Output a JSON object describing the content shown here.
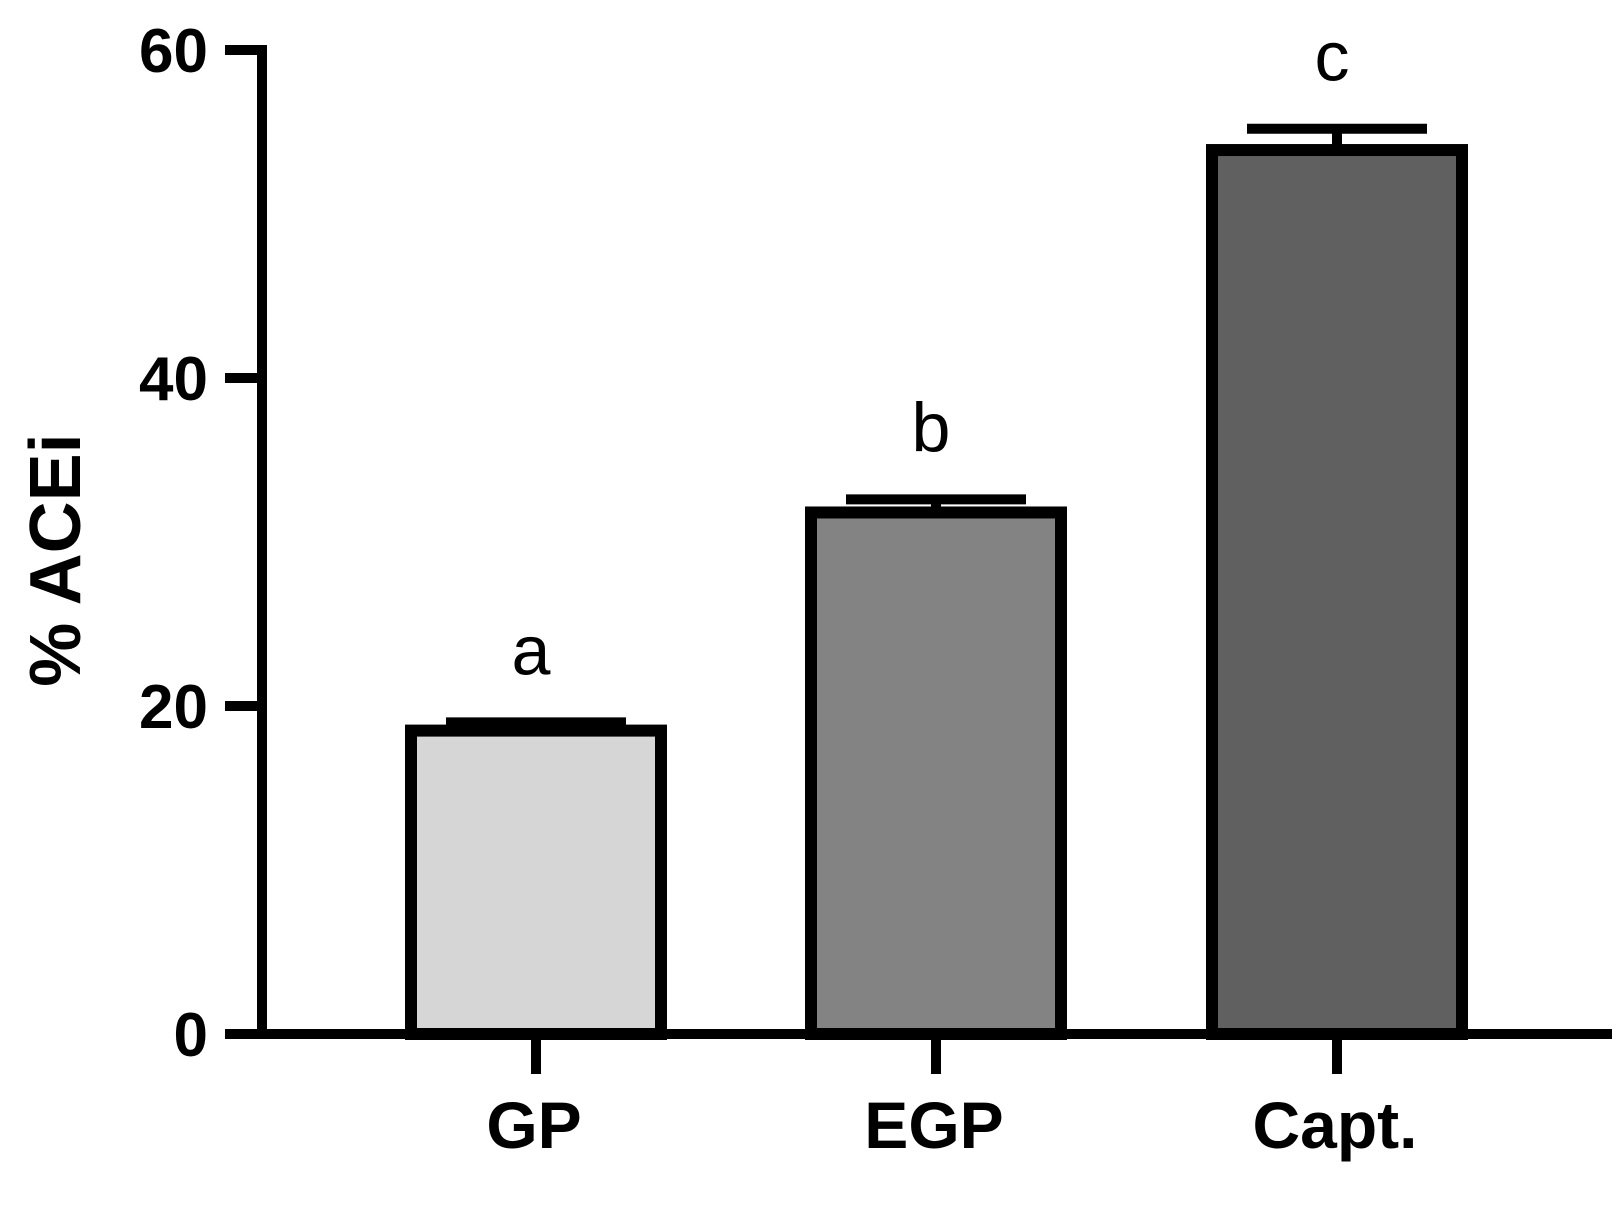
{
  "chart_data": {
    "type": "bar",
    "categories": [
      "GP",
      "EGP",
      "Capt."
    ],
    "values": [
      18.5,
      31.8,
      53.9
    ],
    "errors": [
      0.5,
      0.8,
      1.3
    ],
    "significance_labels": [
      "a",
      "b",
      "c"
    ],
    "bar_colors": [
      "#d6d6d6",
      "#838383",
      "#606060"
    ],
    "title": "",
    "xlabel": "",
    "ylabel": "% ACEi",
    "ylim": [
      0,
      60
    ],
    "yticks": [
      0,
      20,
      40,
      60
    ],
    "ytick_labels": [
      "0",
      "20",
      "40",
      "60"
    ],
    "grid": false,
    "legend": "none"
  }
}
